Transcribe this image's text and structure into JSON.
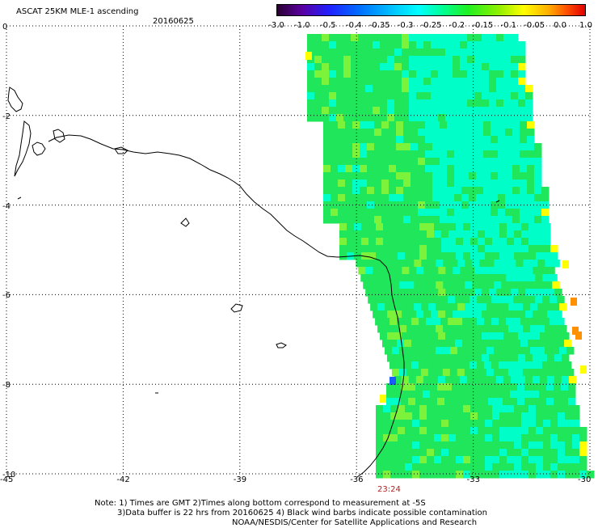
{
  "title": "ASCAT 25KM MLE-1 ascending",
  "date": "20160625",
  "colorbar": {
    "labels": [
      "-3.0",
      "-1.0",
      "-0.5",
      "-0.4",
      "-0.35",
      "-0.3",
      "-0.25",
      "-0.2",
      "-0.15",
      "-0.1",
      "-0.05",
      "0.0",
      "1.0"
    ],
    "colors": [
      "#2a0030",
      "#5a00a0",
      "#2020ff",
      "#0070ff",
      "#00b8ff",
      "#00ffff",
      "#00ff90",
      "#20f020",
      "#90f000",
      "#ffff00",
      "#ffb000",
      "#ff5000",
      "#e00000"
    ]
  },
  "axes": {
    "lat_labels": [
      "0",
      "-2",
      "-4",
      "-6",
      "-8",
      "-10"
    ],
    "lon_labels": [
      "-45",
      "-42",
      "-39",
      "-36",
      "-33",
      "-30"
    ],
    "lat_range": [
      -10,
      0
    ],
    "lon_range": [
      -45,
      -30
    ],
    "grid": "dotted"
  },
  "time_label": "23:24",
  "notes": [
    "Note: 1) Times are GMT 2)Times along bottom correspond to measurement at -5S",
    "3)Data buffer is 22 hrs from 20160625 4) Black wind barbs indicate possible contamination",
    "NOAA/NESDIS/Center for Satellite Applications and Research"
  ],
  "swath_colors": {
    "base": "#1fe65a",
    "cyan": "#00ffc8",
    "light_green": "#7cf23a",
    "yellow": "#ffff00",
    "orange": "#ff9000",
    "blue": "#1a5cff"
  }
}
